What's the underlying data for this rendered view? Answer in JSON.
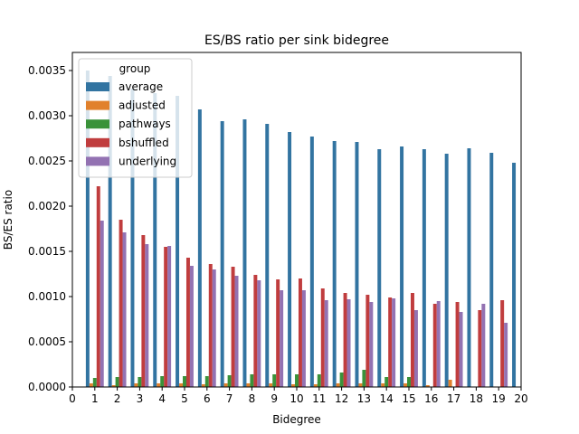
{
  "chart_data": {
    "type": "bar",
    "title": "ES/BS ratio per sink bidegree",
    "xlabel": "Bidegree",
    "ylabel": "BS/ES ratio",
    "x_ticks": [
      "0",
      "1",
      "2",
      "3",
      "4",
      "5",
      "6",
      "7",
      "8",
      "9",
      "10",
      "11",
      "12",
      "13",
      "14",
      "15",
      "16",
      "17",
      "18",
      "19",
      "20"
    ],
    "y_ticks": [
      "0.0000",
      "0.0005",
      "0.0010",
      "0.0015",
      "0.0020",
      "0.0025",
      "0.0030",
      "0.0035"
    ],
    "xlim": [
      0,
      20
    ],
    "ylim": [
      0,
      0.0037
    ],
    "categories": [
      1,
      2,
      3,
      4,
      5,
      6,
      7,
      8,
      9,
      10,
      11,
      12,
      13,
      14,
      15,
      16,
      17,
      18,
      19,
      20
    ],
    "legend": {
      "title": "group",
      "placement": "upper-left"
    },
    "grid": false,
    "series": [
      {
        "name": "average",
        "color": "#3274a1",
        "values": [
          0.0035,
          0.00344,
          0.0033,
          0.00325,
          0.00322,
          0.00307,
          0.00294,
          0.00296,
          0.00291,
          0.00282,
          0.00277,
          0.00272,
          0.00271,
          0.00263,
          0.00266,
          0.00263,
          0.00258,
          0.00264,
          0.00259,
          0.00248
        ]
      },
      {
        "name": "adjusted",
        "color": "#e1812c",
        "values": [
          4e-05,
          2e-05,
          4e-05,
          4e-05,
          4e-05,
          3e-05,
          4e-05,
          4e-05,
          4e-05,
          3e-05,
          3e-05,
          4e-05,
          4e-05,
          4e-05,
          4e-05,
          2e-05,
          8e-05,
          0,
          0,
          0
        ]
      },
      {
        "name": "pathways",
        "color": "#3a923a",
        "values": [
          0.0001,
          0.00011,
          0.00011,
          0.00012,
          0.00012,
          0.00012,
          0.00013,
          0.00014,
          0.00014,
          0.00014,
          0.00014,
          0.00016,
          0.00019,
          0.00011,
          0.00011,
          0,
          0,
          0,
          0,
          0
        ]
      },
      {
        "name": "bshuffled",
        "color": "#c03d3e",
        "values": [
          0.00222,
          0.00185,
          0.00168,
          0.00155,
          0.00143,
          0.00136,
          0.00133,
          0.00124,
          0.00119,
          0.0012,
          0.00109,
          0.00104,
          0.00102,
          0.00099,
          0.00104,
          0.00092,
          0.00094,
          0.00085,
          0.00096,
          0
        ]
      },
      {
        "name": "underlying",
        "color": "#9372b2",
        "values": [
          0.00184,
          0.00171,
          0.00158,
          0.00156,
          0.00134,
          0.0013,
          0.00123,
          0.00118,
          0.00107,
          0.00107,
          0.00096,
          0.00097,
          0.00094,
          0.00098,
          0.00085,
          0.00095,
          0.00083,
          0.00092,
          0.00071,
          0
        ]
      }
    ]
  }
}
